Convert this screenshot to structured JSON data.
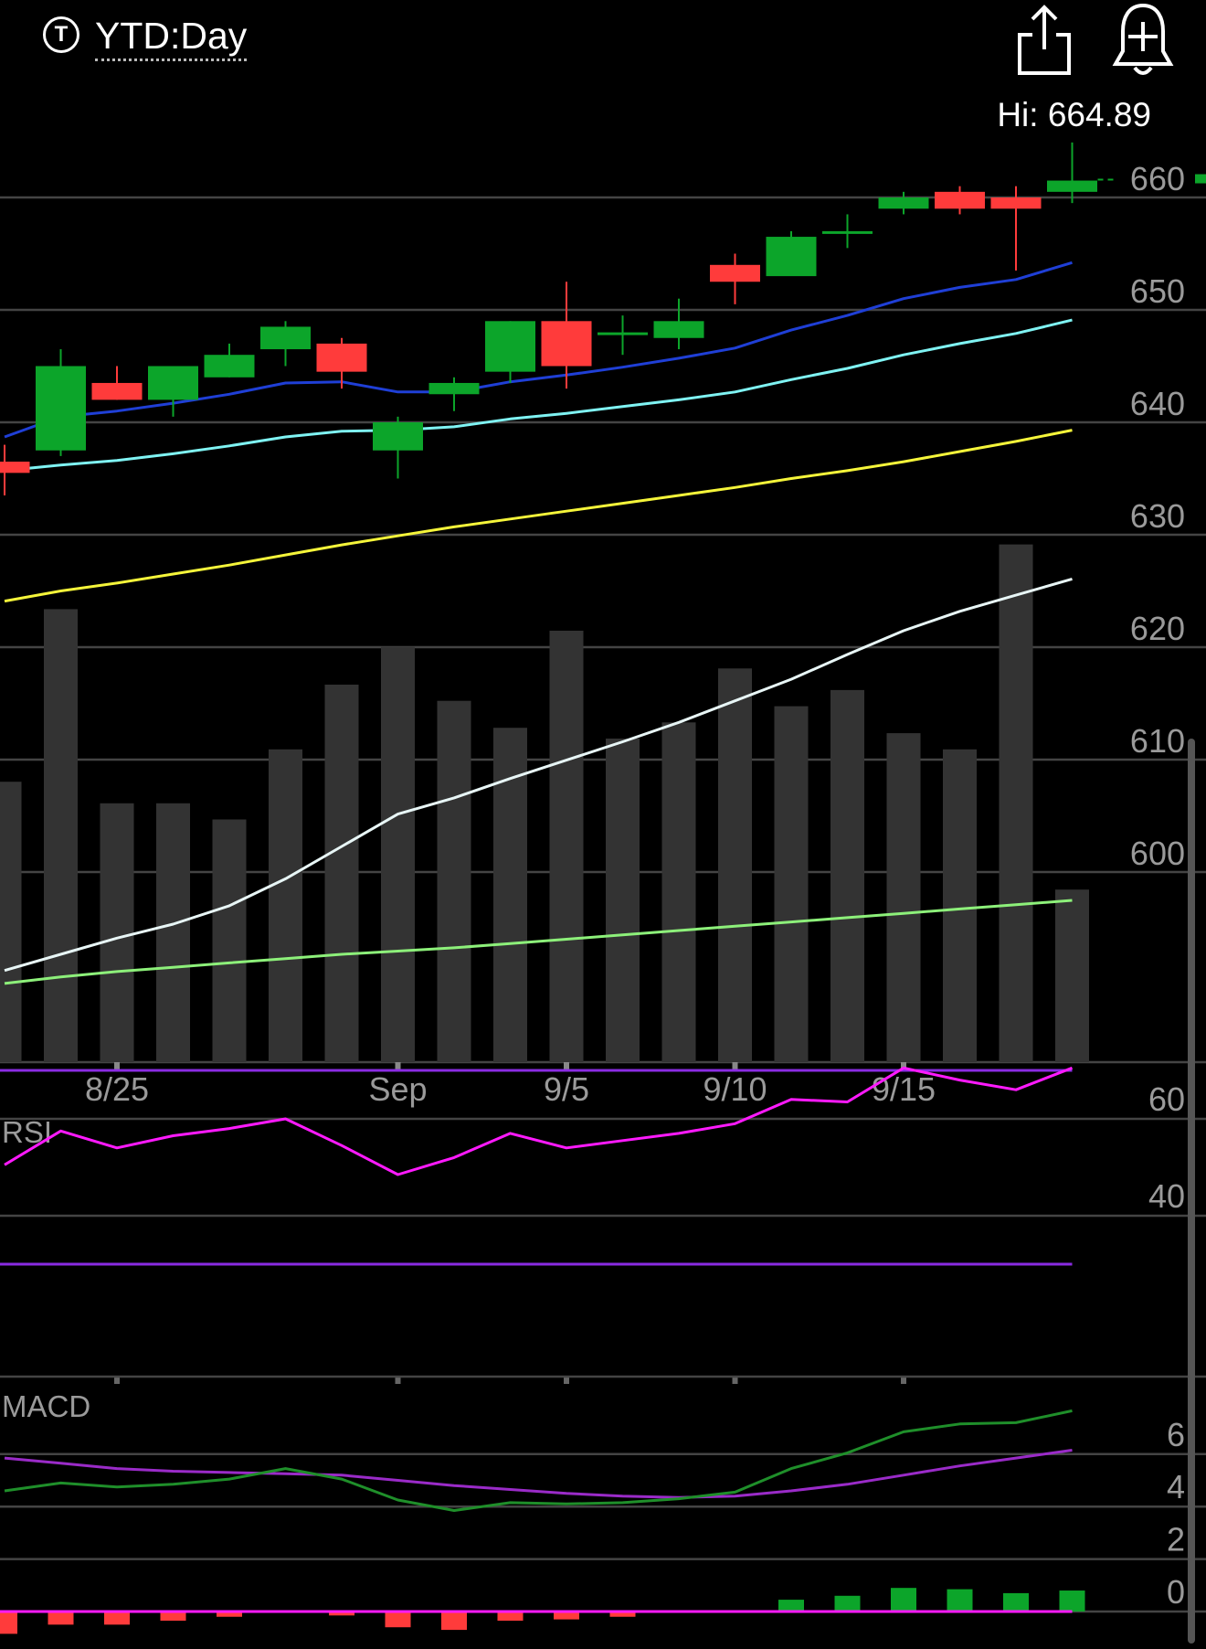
{
  "header": {
    "ticker_icon_letter": "T",
    "timeframe": "YTD:Day",
    "share_icon": "share-icon",
    "alert_icon": "add-alert-bell-icon",
    "hi_label": "Hi: 664.89"
  },
  "colors": {
    "background": "#000000",
    "up": "#0ca52a",
    "down": "#ff3b3b",
    "volume": "#333333",
    "grid": "#444444",
    "ma_short": "#1f3fd6",
    "ma_mid": "#7ff3f3",
    "ma_long": "#f5f53a",
    "vol_ma_short": "#e8f6f6",
    "vol_ma_long": "#8df07a",
    "rsi": "#ff1aff",
    "rsi_bounds": "#8a2be2",
    "macd": "#1f8f2a",
    "macd_signal": "#9a2bc8",
    "macd_zero": "#ff1aff"
  },
  "chart_data": [
    {
      "type": "candlestick",
      "title": "",
      "price_ticks": [
        660,
        650,
        640,
        630,
        620,
        610,
        600
      ],
      "ylim": [
        591,
        665.5
      ],
      "x_ticks": [
        {
          "index": 2,
          "label": "8/25"
        },
        {
          "index": 7,
          "label": "Sep"
        },
        {
          "index": 10,
          "label": "9/5"
        },
        {
          "index": 13,
          "label": "9/10"
        },
        {
          "index": 16,
          "label": "9/15"
        }
      ],
      "grid": true,
      "candles": [
        {
          "open": 636.5,
          "high": 638,
          "low": 633.5,
          "close": 635.5
        },
        {
          "open": 637.5,
          "high": 646.5,
          "low": 637,
          "close": 645
        },
        {
          "open": 643.5,
          "high": 645,
          "low": 642,
          "close": 642
        },
        {
          "open": 642,
          "high": 645,
          "low": 640.5,
          "close": 645
        },
        {
          "open": 644,
          "high": 647,
          "low": 644,
          "close": 646
        },
        {
          "open": 646.5,
          "high": 649,
          "low": 645,
          "close": 648.5
        },
        {
          "open": 647,
          "high": 647.5,
          "low": 643,
          "close": 644.5
        },
        {
          "open": 637.5,
          "high": 640.5,
          "low": 635,
          "close": 640
        },
        {
          "open": 642.5,
          "high": 644,
          "low": 641,
          "close": 643.5
        },
        {
          "open": 644.5,
          "high": 649,
          "low": 643.5,
          "close": 649
        },
        {
          "open": 649,
          "high": 652.5,
          "low": 643,
          "close": 645
        },
        {
          "open": 648,
          "high": 649.5,
          "low": 646,
          "close": 648
        },
        {
          "open": 647.5,
          "high": 651,
          "low": 646.5,
          "close": 649
        },
        {
          "open": 654,
          "high": 655,
          "low": 650.5,
          "close": 652.5
        },
        {
          "open": 653,
          "high": 657,
          "low": 653.5,
          "close": 656.5
        },
        {
          "open": 657,
          "high": 658.5,
          "low": 655.5,
          "close": 657
        },
        {
          "open": 659,
          "high": 660.5,
          "low": 658.5,
          "close": 660
        },
        {
          "open": 660.5,
          "high": 661,
          "low": 658.5,
          "close": 659
        },
        {
          "open": 660,
          "high": 661,
          "low": 653.5,
          "close": 659
        },
        {
          "open": 660.5,
          "high": 664.89,
          "low": 659.5,
          "close": 661.5
        }
      ],
      "moving_averages": [
        {
          "color_key": "ma_short",
          "values": [
            638.7,
            640.5,
            641,
            641.7,
            642.5,
            643.5,
            643.6,
            642.7,
            642.7,
            643.6,
            644.2,
            644.9,
            645.7,
            646.6,
            648.2,
            649.5,
            651,
            652,
            652.7,
            654.2
          ]
        },
        {
          "color_key": "ma_mid",
          "values": [
            635.7,
            636.2,
            636.6,
            637.2,
            637.9,
            638.7,
            639.2,
            639.3,
            639.6,
            640.3,
            640.8,
            641.4,
            642,
            642.7,
            643.8,
            644.8,
            646,
            647,
            647.9,
            649.1
          ]
        },
        {
          "color_key": "ma_long",
          "values": [
            624.1,
            625,
            625.7,
            626.5,
            627.3,
            628.2,
            629.1,
            629.9,
            630.7,
            631.4,
            632.1,
            632.8,
            633.5,
            634.2,
            635,
            635.7,
            636.5,
            637.4,
            638.3,
            639.3
          ]
        }
      ]
    },
    {
      "type": "bar",
      "title": "",
      "note": "volume bars (relative scale, no axis labels shown)",
      "values": [
        26,
        42,
        24,
        24,
        22.5,
        29,
        35,
        38.5,
        33.5,
        31,
        40,
        30,
        31.5,
        36.5,
        33,
        34.5,
        30.5,
        29,
        48,
        16
      ],
      "averages": [
        {
          "color_key": "vol_ma_short",
          "values": [
            8.5,
            10,
            11.5,
            12.8,
            14.5,
            17,
            20,
            23,
            24.5,
            26.3,
            28,
            29.7,
            31.5,
            33.5,
            35.5,
            37.8,
            40,
            41.8,
            43.3,
            44.8
          ]
        },
        {
          "color_key": "vol_ma_long",
          "values": [
            7.3,
            7.9,
            8.4,
            8.8,
            9.2,
            9.6,
            10,
            10.3,
            10.6,
            11,
            11.4,
            11.8,
            12.2,
            12.6,
            13,
            13.4,
            13.8,
            14.2,
            14.6,
            15
          ]
        }
      ]
    },
    {
      "type": "line",
      "title": "RSI",
      "ticks": [
        60,
        40
      ],
      "ylim": [
        24,
        72
      ],
      "overbought": 70,
      "oversold": 30,
      "values": [
        50.5,
        57.5,
        54,
        56.5,
        58,
        60,
        54.5,
        48.5,
        52,
        57,
        54,
        55.5,
        57,
        59,
        64,
        63.5,
        70.5,
        68,
        66,
        70.5
      ]
    },
    {
      "type": "line",
      "title": "MACD",
      "ticks": [
        6,
        4,
        2,
        0
      ],
      "ylim": [
        -1.2,
        7.0
      ],
      "macd": [
        4.6,
        4.9,
        4.75,
        4.85,
        5.05,
        5.45,
        5.05,
        4.25,
        3.85,
        4.15,
        4.1,
        4.15,
        4.3,
        4.55,
        5.45,
        6.05,
        6.85,
        7.15,
        7.2,
        7.65
      ],
      "signal": [
        5.85,
        5.65,
        5.45,
        5.35,
        5.3,
        5.25,
        5.2,
        5.0,
        4.8,
        4.65,
        4.5,
        4.4,
        4.35,
        4.4,
        4.6,
        4.85,
        5.2,
        5.55,
        5.85,
        6.15
      ],
      "histogram": [
        -0.85,
        -0.5,
        -0.5,
        -0.35,
        -0.2,
        0,
        -0.15,
        -0.6,
        -0.7,
        -0.35,
        -0.3,
        -0.2,
        -0.05,
        0.05,
        0.45,
        0.6,
        0.9,
        0.85,
        0.7,
        0.8
      ]
    }
  ]
}
